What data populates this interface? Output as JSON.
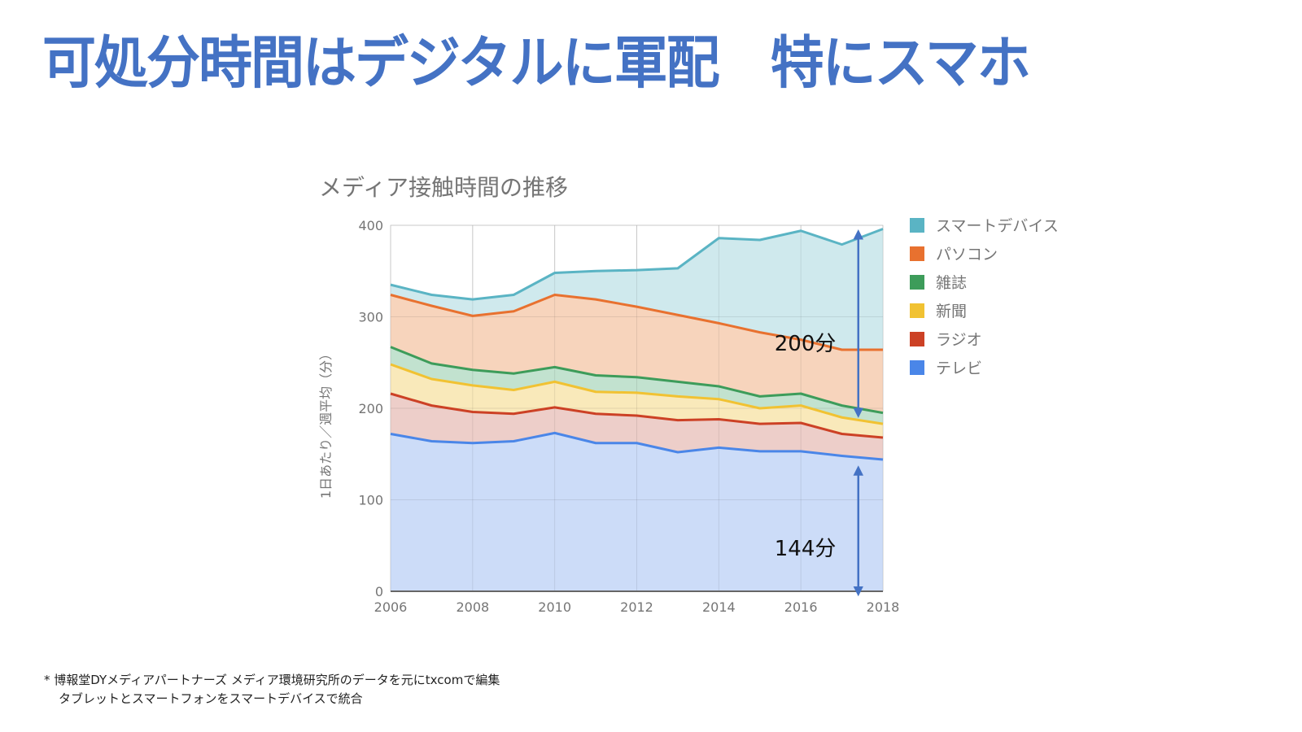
{
  "slide": {
    "title": "可処分時間はデジタルに軍配　特にスマホ",
    "footnotes": [
      "* 博報堂DYメディアパートナーズ メディア環境研究所のデータを元にtxcomで編集",
      "タブレットとスマートフォンをスマートデバイスで統合"
    ]
  },
  "chart_data": {
    "type": "area",
    "stacked": true,
    "title": "メディア接触時間の推移",
    "xlabel": "",
    "ylabel": "1日あたり／週平均（分）",
    "x": [
      2006,
      2007,
      2008,
      2009,
      2010,
      2011,
      2012,
      2013,
      2014,
      2015,
      2016,
      2017,
      2018
    ],
    "xticks": [
      "2006",
      "2008",
      "2010",
      "2012",
      "2014",
      "2016",
      "2018"
    ],
    "yticks": [
      "0",
      "100",
      "200",
      "300",
      "400"
    ],
    "xlim": [
      2006,
      2018
    ],
    "ylim": [
      0,
      400
    ],
    "grid": true,
    "legend_position": "right",
    "series": [
      {
        "name": "テレビ",
        "color": "#4a86e8",
        "fill": "#c9daf8",
        "values": [
          172,
          164,
          162,
          164,
          173,
          162,
          162,
          152,
          157,
          153,
          153,
          148,
          144
        ]
      },
      {
        "name": "ラジオ",
        "color": "#cc4125",
        "fill": "#eccbc6",
        "values": [
          44,
          39,
          34,
          30,
          28,
          32,
          30,
          35,
          31,
          30,
          31,
          24,
          24
        ]
      },
      {
        "name": "新聞",
        "color": "#f1c232",
        "fill": "#f9e8b6",
        "values": [
          32,
          29,
          29,
          26,
          28,
          24,
          25,
          26,
          22,
          17,
          19,
          18,
          15
        ]
      },
      {
        "name": "雑誌",
        "color": "#3d9c5a",
        "fill": "#bfe0cc",
        "values": [
          19,
          17,
          17,
          18,
          16,
          18,
          17,
          16,
          14,
          13,
          13,
          13,
          12
        ]
      },
      {
        "name": "パソコン",
        "color": "#e8712f",
        "fill": "#f7d2b8",
        "values": [
          57,
          63,
          59,
          68,
          79,
          83,
          77,
          73,
          69,
          70,
          59,
          61,
          69
        ]
      },
      {
        "name": "スマートデバイス",
        "color": "#5ab4c4",
        "fill": "#cce8ec",
        "values": [
          11,
          12,
          18,
          18,
          24,
          31,
          40,
          51,
          93,
          101,
          119,
          115,
          132
        ]
      }
    ],
    "legend_order": [
      "スマートデバイス",
      "パソコン",
      "雑誌",
      "新聞",
      "ラジオ",
      "テレビ"
    ],
    "annotations": [
      {
        "label": "200分",
        "x": 2017.4,
        "y_from": 195,
        "y_to": 390,
        "type": "double-arrow"
      },
      {
        "label": "144分",
        "x": 2017.4,
        "y_from": 0,
        "y_to": 132,
        "type": "double-arrow"
      }
    ]
  }
}
